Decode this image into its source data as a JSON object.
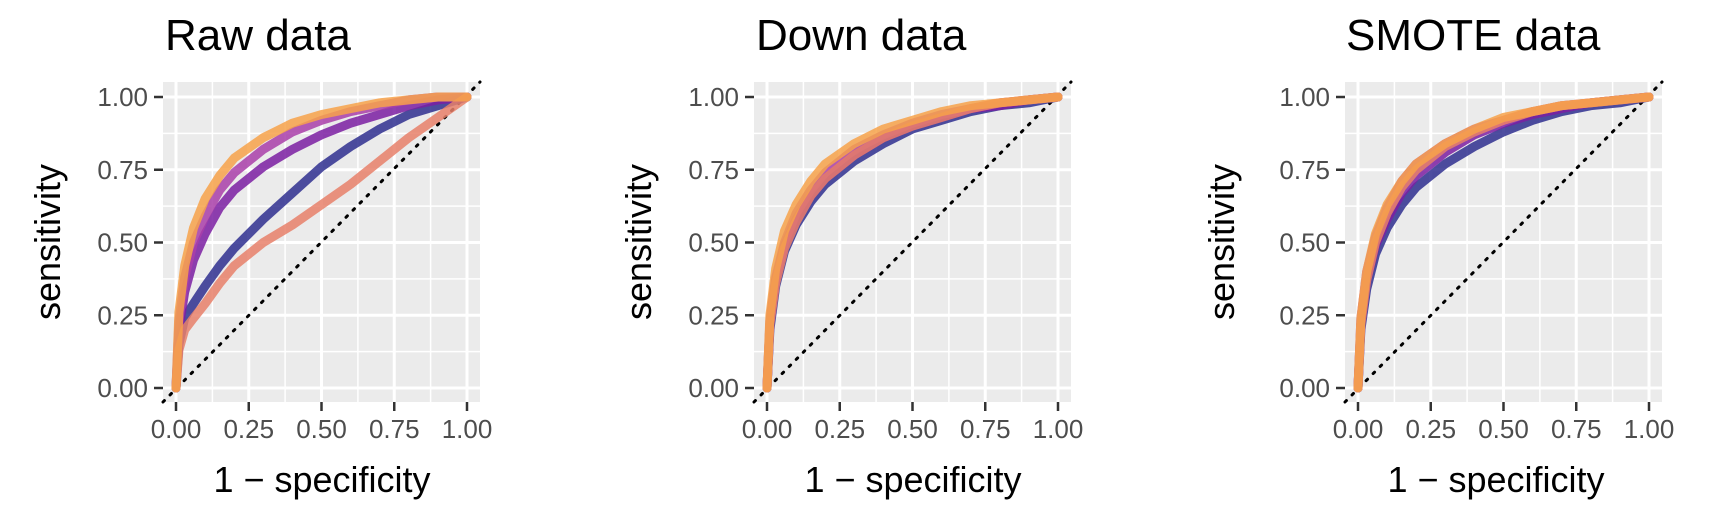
{
  "chart_data": [
    {
      "type": "line",
      "title": "Raw data",
      "xlabel": "1 − specificity",
      "ylabel": "sensitivity",
      "xlim": [
        0,
        1
      ],
      "ylim": [
        0,
        1
      ],
      "x_ticks": [
        "0.00",
        "0.25",
        "0.50",
        "0.75",
        "1.00"
      ],
      "y_ticks": [
        "0.00",
        "0.25",
        "0.50",
        "0.75",
        "1.00"
      ],
      "grid": true,
      "reference_line": "diagonal dotted",
      "series": [
        {
          "color": "#2f2f8f",
          "x": [
            0,
            0.01,
            0.03,
            0.06,
            0.1,
            0.15,
            0.2,
            0.3,
            0.4,
            0.5,
            0.6,
            0.7,
            0.8,
            0.9,
            1.0
          ],
          "y": [
            0,
            0.15,
            0.24,
            0.29,
            0.35,
            0.42,
            0.48,
            0.58,
            0.67,
            0.76,
            0.83,
            0.89,
            0.94,
            0.97,
            1.0
          ]
        },
        {
          "color": "#7b1fa2",
          "x": [
            0,
            0.01,
            0.03,
            0.06,
            0.1,
            0.15,
            0.2,
            0.3,
            0.4,
            0.5,
            0.6,
            0.7,
            0.8,
            0.9,
            1.0
          ],
          "y": [
            0,
            0.2,
            0.33,
            0.44,
            0.53,
            0.62,
            0.68,
            0.76,
            0.82,
            0.87,
            0.91,
            0.94,
            0.97,
            0.99,
            1.0
          ]
        },
        {
          "color": "#a93ea9",
          "x": [
            0,
            0.01,
            0.03,
            0.06,
            0.1,
            0.15,
            0.2,
            0.3,
            0.4,
            0.5,
            0.6,
            0.7,
            0.8,
            0.9,
            1.0
          ],
          "y": [
            0,
            0.23,
            0.38,
            0.5,
            0.59,
            0.68,
            0.74,
            0.82,
            0.88,
            0.92,
            0.95,
            0.97,
            0.99,
            1.0,
            1.0
          ]
        },
        {
          "color": "#e8806a",
          "x": [
            0,
            0.01,
            0.03,
            0.06,
            0.1,
            0.15,
            0.2,
            0.3,
            0.4,
            0.5,
            0.6,
            0.7,
            0.8,
            0.9,
            1.0
          ],
          "y": [
            0,
            0.13,
            0.2,
            0.24,
            0.29,
            0.36,
            0.42,
            0.5,
            0.56,
            0.63,
            0.7,
            0.78,
            0.86,
            0.93,
            1.0
          ]
        },
        {
          "color": "#f7a24a",
          "x": [
            0,
            0.01,
            0.03,
            0.06,
            0.1,
            0.15,
            0.2,
            0.3,
            0.4,
            0.5,
            0.6,
            0.7,
            0.8,
            0.9,
            1.0
          ],
          "y": [
            0,
            0.26,
            0.42,
            0.55,
            0.65,
            0.73,
            0.79,
            0.86,
            0.91,
            0.94,
            0.96,
            0.98,
            0.99,
            1.0,
            1.0
          ]
        }
      ]
    },
    {
      "type": "line",
      "title": "Down data",
      "xlabel": "1 − specificity",
      "ylabel": "sensitivity",
      "xlim": [
        0,
        1
      ],
      "ylim": [
        0,
        1
      ],
      "x_ticks": [
        "0.00",
        "0.25",
        "0.50",
        "0.75",
        "1.00"
      ],
      "y_ticks": [
        "0.00",
        "0.25",
        "0.50",
        "0.75",
        "1.00"
      ],
      "grid": true,
      "reference_line": "diagonal dotted",
      "series": [
        {
          "color": "#2f2f8f",
          "x": [
            0,
            0.01,
            0.03,
            0.06,
            0.1,
            0.15,
            0.2,
            0.3,
            0.4,
            0.5,
            0.6,
            0.7,
            0.8,
            0.9,
            1.0
          ],
          "y": [
            0,
            0.2,
            0.35,
            0.47,
            0.56,
            0.64,
            0.7,
            0.78,
            0.84,
            0.89,
            0.92,
            0.95,
            0.97,
            0.98,
            1.0
          ]
        },
        {
          "color": "#7b1fa2",
          "x": [
            0,
            0.01,
            0.03,
            0.06,
            0.1,
            0.15,
            0.2,
            0.3,
            0.4,
            0.5,
            0.6,
            0.7,
            0.8,
            0.9,
            1.0
          ],
          "y": [
            0,
            0.22,
            0.37,
            0.49,
            0.58,
            0.66,
            0.72,
            0.8,
            0.86,
            0.9,
            0.93,
            0.96,
            0.97,
            0.99,
            1.0
          ]
        },
        {
          "color": "#a93ea9",
          "x": [
            0,
            0.01,
            0.03,
            0.06,
            0.1,
            0.15,
            0.2,
            0.3,
            0.4,
            0.5,
            0.6,
            0.7,
            0.8,
            0.9,
            1.0
          ],
          "y": [
            0,
            0.23,
            0.38,
            0.5,
            0.6,
            0.68,
            0.74,
            0.82,
            0.87,
            0.91,
            0.94,
            0.96,
            0.98,
            0.99,
            1.0
          ]
        },
        {
          "color": "#e8806a",
          "x": [
            0,
            0.01,
            0.03,
            0.06,
            0.1,
            0.15,
            0.2,
            0.3,
            0.4,
            0.5,
            0.6,
            0.7,
            0.8,
            0.9,
            1.0
          ],
          "y": [
            0,
            0.22,
            0.36,
            0.48,
            0.57,
            0.66,
            0.72,
            0.8,
            0.86,
            0.9,
            0.93,
            0.96,
            0.98,
            0.99,
            1.0
          ]
        },
        {
          "color": "#f7a24a",
          "x": [
            0,
            0.01,
            0.03,
            0.06,
            0.1,
            0.15,
            0.2,
            0.3,
            0.4,
            0.5,
            0.6,
            0.7,
            0.8,
            0.9,
            1.0
          ],
          "y": [
            0,
            0.25,
            0.41,
            0.54,
            0.63,
            0.71,
            0.77,
            0.84,
            0.89,
            0.92,
            0.95,
            0.97,
            0.98,
            0.99,
            1.0
          ]
        }
      ]
    },
    {
      "type": "line",
      "title": "SMOTE data",
      "xlabel": "1 − specificity",
      "ylabel": "sensitivity",
      "xlim": [
        0,
        1
      ],
      "ylim": [
        0,
        1
      ],
      "x_ticks": [
        "0.00",
        "0.25",
        "0.50",
        "0.75",
        "1.00"
      ],
      "y_ticks": [
        "0.00",
        "0.25",
        "0.50",
        "0.75",
        "1.00"
      ],
      "grid": true,
      "reference_line": "diagonal dotted",
      "series": [
        {
          "color": "#2f2f8f",
          "x": [
            0,
            0.01,
            0.03,
            0.06,
            0.1,
            0.15,
            0.2,
            0.3,
            0.4,
            0.5,
            0.6,
            0.7,
            0.8,
            0.9,
            1.0
          ],
          "y": [
            0,
            0.2,
            0.34,
            0.46,
            0.55,
            0.63,
            0.69,
            0.77,
            0.83,
            0.88,
            0.92,
            0.95,
            0.97,
            0.98,
            1.0
          ]
        },
        {
          "color": "#7b1fa2",
          "x": [
            0,
            0.01,
            0.03,
            0.06,
            0.1,
            0.15,
            0.2,
            0.3,
            0.4,
            0.5,
            0.6,
            0.7,
            0.8,
            0.9,
            1.0
          ],
          "y": [
            0,
            0.22,
            0.37,
            0.49,
            0.58,
            0.67,
            0.73,
            0.81,
            0.87,
            0.91,
            0.94,
            0.96,
            0.98,
            0.99,
            1.0
          ]
        },
        {
          "color": "#a93ea9",
          "x": [
            0,
            0.01,
            0.03,
            0.06,
            0.1,
            0.15,
            0.2,
            0.3,
            0.4,
            0.5,
            0.6,
            0.7,
            0.8,
            0.9,
            1.0
          ],
          "y": [
            0,
            0.24,
            0.4,
            0.52,
            0.62,
            0.71,
            0.77,
            0.84,
            0.89,
            0.92,
            0.95,
            0.97,
            0.98,
            0.99,
            1.0
          ]
        },
        {
          "color": "#e8806a",
          "x": [
            0,
            0.01,
            0.03,
            0.06,
            0.1,
            0.15,
            0.2,
            0.3,
            0.4,
            0.5,
            0.6,
            0.7,
            0.8,
            0.9,
            1.0
          ],
          "y": [
            0,
            0.22,
            0.37,
            0.5,
            0.6,
            0.69,
            0.75,
            0.83,
            0.88,
            0.92,
            0.95,
            0.97,
            0.98,
            0.99,
            1.0
          ]
        },
        {
          "color": "#f7a24a",
          "x": [
            0,
            0.01,
            0.03,
            0.06,
            0.1,
            0.15,
            0.2,
            0.3,
            0.4,
            0.5,
            0.6,
            0.7,
            0.8,
            0.9,
            1.0
          ],
          "y": [
            0,
            0.24,
            0.4,
            0.53,
            0.63,
            0.71,
            0.77,
            0.84,
            0.89,
            0.93,
            0.95,
            0.97,
            0.98,
            0.99,
            1.0
          ]
        }
      ]
    }
  ]
}
